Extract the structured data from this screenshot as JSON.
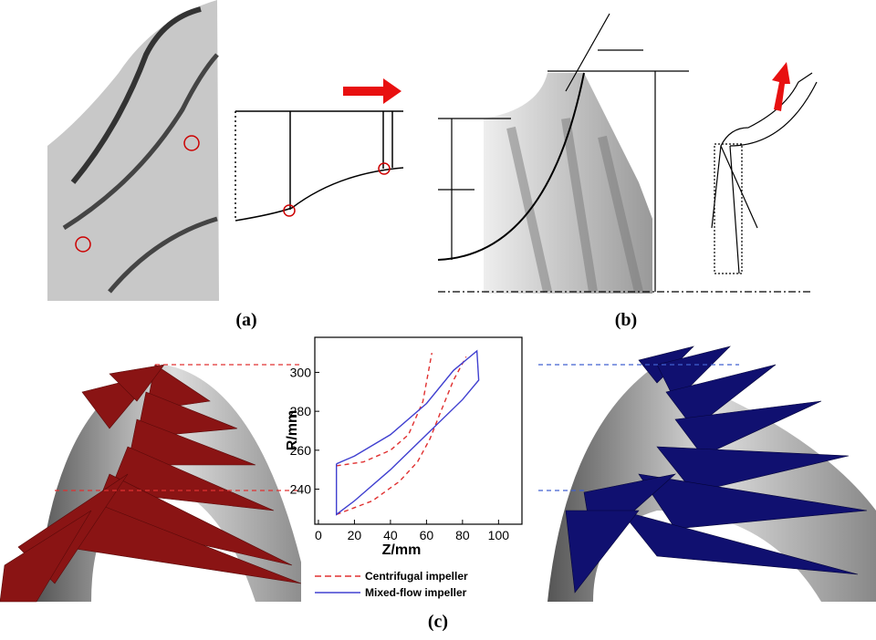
{
  "labels": [
    "(a)",
    "(b)",
    "(c)"
  ],
  "chart_data": {
    "type": "line",
    "xlabel": "Z/mm",
    "ylabel": "R/mm",
    "xlim": [
      -2,
      113
    ],
    "ylim": [
      222,
      318
    ],
    "xticks": [
      0,
      20,
      40,
      60,
      80,
      100
    ],
    "yticks": [
      240,
      260,
      280,
      300
    ],
    "series": [
      {
        "name": "Centrifugal impeller",
        "color": "#e03030",
        "dashed": true,
        "x": [
          10,
          25,
          40,
          50,
          58,
          63,
          null,
          10,
          30,
          45,
          55,
          62,
          68,
          75,
          82
        ],
        "values": [
          252,
          254,
          260,
          268,
          285,
          310,
          null,
          227,
          234,
          244,
          254,
          266,
          280,
          296,
          308
        ]
      },
      {
        "name": "Mixed-flow impeller",
        "color": "#4040d0",
        "dashed": false,
        "x": [
          10,
          20,
          40,
          60,
          75,
          88,
          89,
          80,
          60,
          40,
          20,
          10,
          10
        ],
        "values": [
          253,
          257,
          268,
          284,
          301,
          311,
          296,
          286,
          268,
          250,
          234,
          227,
          253
        ]
      }
    ]
  }
}
